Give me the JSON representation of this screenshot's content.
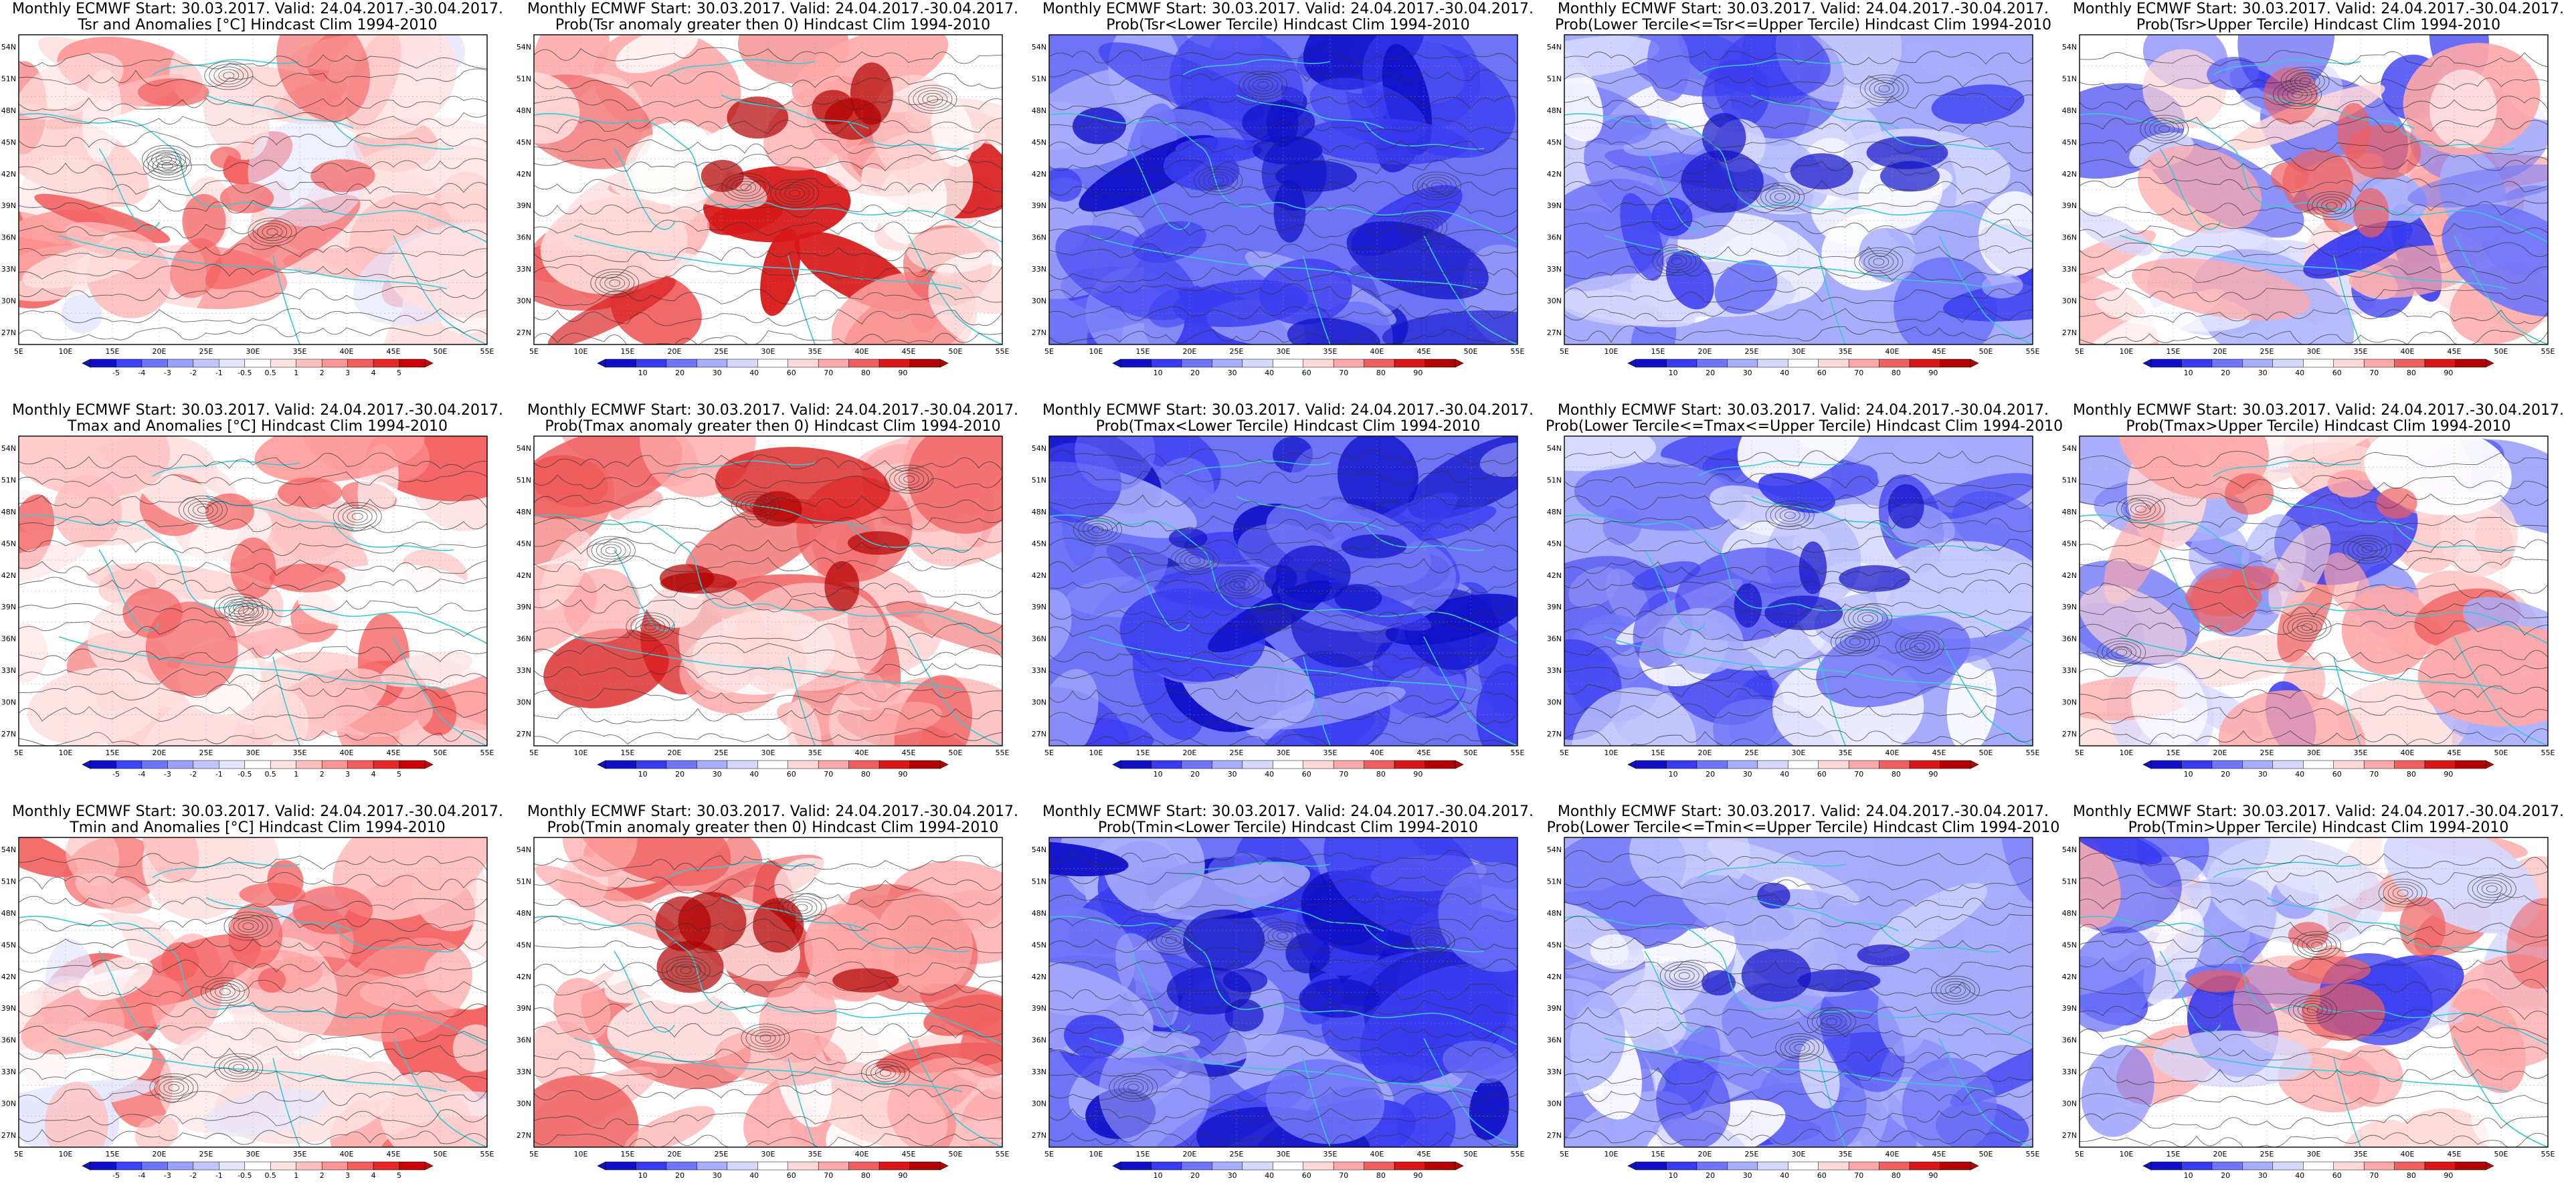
{
  "lat_labels": [
    "54N",
    "51N",
    "48N",
    "45N",
    "42N",
    "39N",
    "36N",
    "33N",
    "30N",
    "27N"
  ],
  "lon_labels": [
    "5E",
    "10E",
    "15E",
    "20E",
    "25E",
    "30E",
    "35E",
    "40E",
    "45E",
    "50E",
    "55E"
  ],
  "colors": {
    "coast": "#3cc8d2",
    "contour": "#333333",
    "anomaly_scale": [
      "#1010c8",
      "#3a44ff",
      "#6c76ff",
      "#9aa2ff",
      "#c2c6ff",
      "#e4e6ff",
      "#ffffff",
      "#ffe2e2",
      "#ffc0c0",
      "#ff9696",
      "#f45e5e",
      "#e82828",
      "#c80000"
    ],
    "prob_scale": [
      "#1010c8",
      "#3a3cf0",
      "#7076f8",
      "#a8aefc",
      "#d6d8fe",
      "#ffffff",
      "#ffd8d8",
      "#ffa8a8",
      "#f06060",
      "#d81818",
      "#b00000"
    ]
  },
  "colorbars": {
    "anomaly_ticks": [
      "-5",
      "-4",
      "-3",
      "-2",
      "-1",
      "-0.5",
      "0.5",
      "1",
      "2",
      "3",
      "4",
      "5"
    ],
    "prob_ticks": [
      "10",
      "20",
      "30",
      "40",
      "60",
      "70",
      "80",
      "90"
    ]
  },
  "panels": [
    {
      "line1": "Monthly ECMWF Start: 30.03.2017. Valid: 24.04.2017.-30.04.2017.",
      "line2": "Tsr and Anomalies [°C] Hindcast Clim 1994-2010",
      "kind": "anom",
      "dominant": "red",
      "intensity": 0.45,
      "colorbar": "anomaly"
    },
    {
      "line1": "Monthly ECMWF Start: 30.03.2017. Valid: 24.04.2017.-30.04.2017.",
      "line2": "Prob(Tsr anomaly greater then 0) Hindcast Clim 1994-2010",
      "kind": "prob",
      "dominant": "red",
      "intensity": 0.75,
      "colorbar": "prob"
    },
    {
      "line1": "Monthly ECMWF Start: 30.03.2017. Valid: 24.04.2017.-30.04.2017.",
      "line2": "Prob(Tsr<Lower Tercile) Hindcast Clim 1994-2010",
      "kind": "prob",
      "dominant": "blue",
      "intensity": 0.85,
      "colorbar": "prob"
    },
    {
      "line1": "Monthly ECMWF Start: 30.03.2017. Valid: 24.04.2017.-30.04.2017.",
      "line2": "Prob(Lower Tercile<=Tsr<=Upper Tercile) Hindcast Clim 1994-2010",
      "kind": "prob",
      "dominant": "blue",
      "intensity": 0.6,
      "colorbar": "prob"
    },
    {
      "line1": "Monthly ECMWF Start: 30.03.2017. Valid: 24.04.2017.-30.04.2017.",
      "line2": "Prob(Tsr>Upper Tercile) Hindcast Clim 1994-2010",
      "kind": "prob",
      "dominant": "mixed",
      "intensity": 0.4,
      "colorbar": "prob"
    },
    {
      "line1": "Monthly ECMWF Start: 30.03.2017. Valid: 24.04.2017.-30.04.2017.",
      "line2": "Tmax and Anomalies [°C] Hindcast Clim 1994-2010",
      "kind": "anom",
      "dominant": "red",
      "intensity": 0.5,
      "colorbar": "anomaly"
    },
    {
      "line1": "Monthly ECMWF Start: 30.03.2017. Valid: 24.04.2017.-30.04.2017.",
      "line2": "Prob(Tmax anomaly greater then 0) Hindcast Clim 1994-2010",
      "kind": "prob",
      "dominant": "red",
      "intensity": 0.75,
      "colorbar": "prob"
    },
    {
      "line1": "Monthly ECMWF Start: 30.03.2017. Valid: 24.04.2017.-30.04.2017.",
      "line2": "Prob(Tmax<Lower Tercile) Hindcast Clim 1994-2010",
      "kind": "prob",
      "dominant": "blue",
      "intensity": 0.9,
      "colorbar": "prob"
    },
    {
      "line1": "Monthly ECMWF Start: 30.03.2017. Valid: 24.04.2017.-30.04.2017.",
      "line2": "Prob(Lower Tercile<=Tmax<=Upper Tercile) Hindcast Clim 1994-2010",
      "kind": "prob",
      "dominant": "blue",
      "intensity": 0.6,
      "colorbar": "prob"
    },
    {
      "line1": "Monthly ECMWF Start: 30.03.2017. Valid: 24.04.2017.-30.04.2017.",
      "line2": "Prob(Tmax>Upper Tercile) Hindcast Clim 1994-2010",
      "kind": "prob",
      "dominant": "mixed",
      "intensity": 0.45,
      "colorbar": "prob"
    },
    {
      "line1": "Monthly ECMWF Start: 30.03.2017. Valid: 24.04.2017.-30.04.2017.",
      "line2": "Tmin and Anomalies [°C] Hindcast Clim 1994-2010",
      "kind": "anom",
      "dominant": "red",
      "intensity": 0.45,
      "colorbar": "anomaly"
    },
    {
      "line1": "Monthly ECMWF Start: 30.03.2017. Valid: 24.04.2017.-30.04.2017.",
      "line2": "Prob(Tmin anomaly greater then 0) Hindcast Clim 1994-2010",
      "kind": "prob",
      "dominant": "red",
      "intensity": 0.8,
      "colorbar": "prob"
    },
    {
      "line1": "Monthly ECMWF Start: 30.03.2017. Valid: 24.04.2017.-30.04.2017.",
      "line2": "Prob(Tmin<Lower Tercile) Hindcast Clim 1994-2010",
      "kind": "prob",
      "dominant": "blue",
      "intensity": 0.85,
      "colorbar": "prob"
    },
    {
      "line1": "Monthly ECMWF Start: 30.03.2017. Valid: 24.04.2017.-30.04.2017.",
      "line2": "Prob(Lower Tercile<=Tmin<=Upper Tercile) Hindcast Clim 1994-2010",
      "kind": "prob",
      "dominant": "blue",
      "intensity": 0.6,
      "colorbar": "prob"
    },
    {
      "line1": "Monthly ECMWF Start: 30.03.2017. Valid: 24.04.2017.-30.04.2017.",
      "line2": "Prob(Tmin>Upper Tercile) Hindcast Clim 1994-2010",
      "kind": "prob",
      "dominant": "mixed",
      "intensity": 0.4,
      "colorbar": "prob"
    }
  ]
}
